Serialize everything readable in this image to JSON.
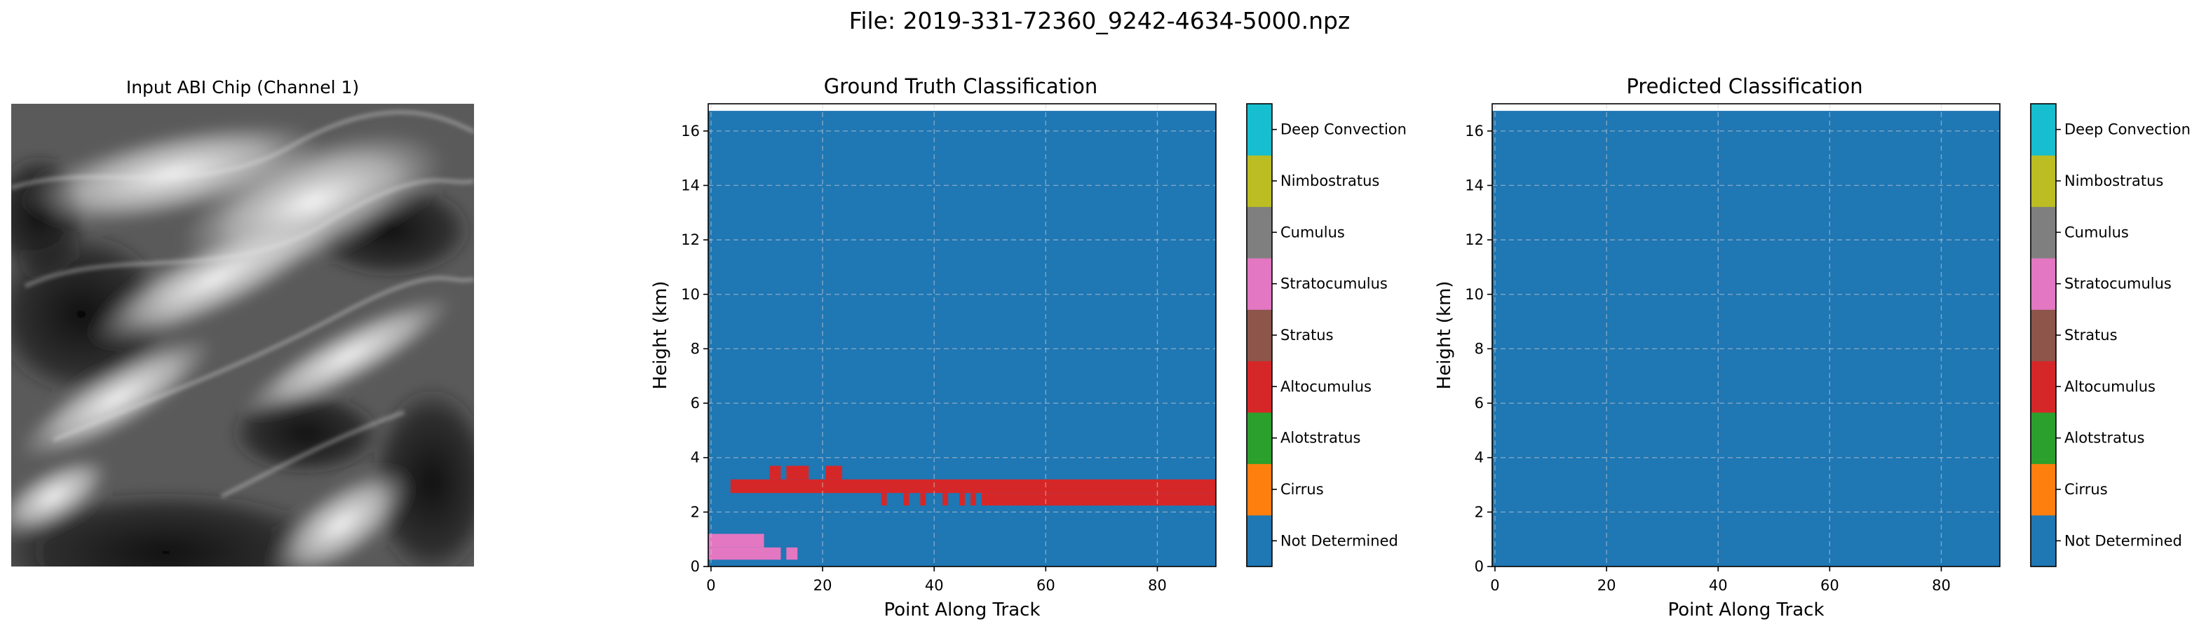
{
  "suptitle": "File: 2019-331-72360_9242-4634-5000.npz",
  "image_panel": {
    "title": "Input ABI Chip (Channel 1)"
  },
  "class_colors": {
    "Not Determined": "#1f77b4",
    "Cirrus": "#ff7f0e",
    "Alotstratus": "#2ca02c",
    "Altocumulus": "#d62728",
    "Stratus": "#8c564b",
    "Stratocumulus": "#e377c2",
    "Cumulus": "#7f7f7f",
    "Nimbostratus": "#bcbd22",
    "Deep Convection": "#17becf"
  },
  "chart_data": [
    {
      "type": "heatmap",
      "title": "Ground Truth Classification",
      "xlabel": "Point Along Track",
      "ylabel": "Height (km)",
      "xlim": [
        -0.5,
        90.5
      ],
      "ylim": [
        0,
        17
      ],
      "xticks": [
        0,
        20,
        40,
        60,
        80
      ],
      "yticks": [
        0,
        2,
        4,
        6,
        8,
        10,
        12,
        14,
        16
      ],
      "grid": true,
      "background_class": "Not Determined",
      "data_top_km": 16.74,
      "colorbar_classes": [
        "Not Determined",
        "Cirrus",
        "Alotstratus",
        "Altocumulus",
        "Stratus",
        "Stratocumulus",
        "Cumulus",
        "Nimbostratus",
        "Deep Convection"
      ],
      "regions": [
        {
          "class": "Altocumulus",
          "x": [
            3.5,
            90.5
          ],
          "y": [
            2.7,
            3.2
          ]
        },
        {
          "class": "Altocumulus",
          "x": [
            48.5,
            90.5
          ],
          "y": [
            2.24,
            2.7
          ]
        },
        {
          "class": "Altocumulus",
          "x": [
            10.5,
            12.5
          ],
          "y": [
            3.2,
            3.7
          ]
        },
        {
          "class": "Altocumulus",
          "x": [
            13.5,
            17.5
          ],
          "y": [
            3.2,
            3.7
          ]
        },
        {
          "class": "Altocumulus",
          "x": [
            20.5,
            23.5
          ],
          "y": [
            3.2,
            3.7
          ]
        },
        {
          "class": "Altocumulus",
          "x": [
            30.5,
            31.5
          ],
          "y": [
            2.24,
            2.7
          ]
        },
        {
          "class": "Altocumulus",
          "x": [
            34.5,
            35.5
          ],
          "y": [
            2.24,
            2.7
          ]
        },
        {
          "class": "Altocumulus",
          "x": [
            37.5,
            38.5
          ],
          "y": [
            2.24,
            2.7
          ]
        },
        {
          "class": "Altocumulus",
          "x": [
            41.5,
            42.5
          ],
          "y": [
            2.24,
            2.7
          ]
        },
        {
          "class": "Altocumulus",
          "x": [
            44.5,
            45.5
          ],
          "y": [
            2.24,
            2.7
          ]
        },
        {
          "class": "Altocumulus",
          "x": [
            46.5,
            47.5
          ],
          "y": [
            2.24,
            2.7
          ]
        },
        {
          "class": "Stratocumulus",
          "x": [
            -0.5,
            9.5
          ],
          "y": [
            0.7,
            1.2
          ]
        },
        {
          "class": "Stratocumulus",
          "x": [
            -0.5,
            12.5
          ],
          "y": [
            0.7,
            0.25
          ]
        },
        {
          "class": "Stratocumulus",
          "x": [
            13.5,
            15.5
          ],
          "y": [
            0.25,
            0.7
          ]
        }
      ]
    },
    {
      "type": "heatmap",
      "title": "Predicted Classification",
      "xlabel": "Point Along Track",
      "ylabel": "Height (km)",
      "xlim": [
        -0.5,
        90.5
      ],
      "ylim": [
        0,
        17
      ],
      "xticks": [
        0,
        20,
        40,
        60,
        80
      ],
      "yticks": [
        0,
        2,
        4,
        6,
        8,
        10,
        12,
        14,
        16
      ],
      "grid": true,
      "background_class": "Not Determined",
      "data_top_km": 16.74,
      "colorbar_classes": [
        "Not Determined",
        "Cirrus",
        "Alotstratus",
        "Altocumulus",
        "Stratus",
        "Stratocumulus",
        "Cumulus",
        "Nimbostratus",
        "Deep Convection"
      ],
      "regions": []
    }
  ]
}
